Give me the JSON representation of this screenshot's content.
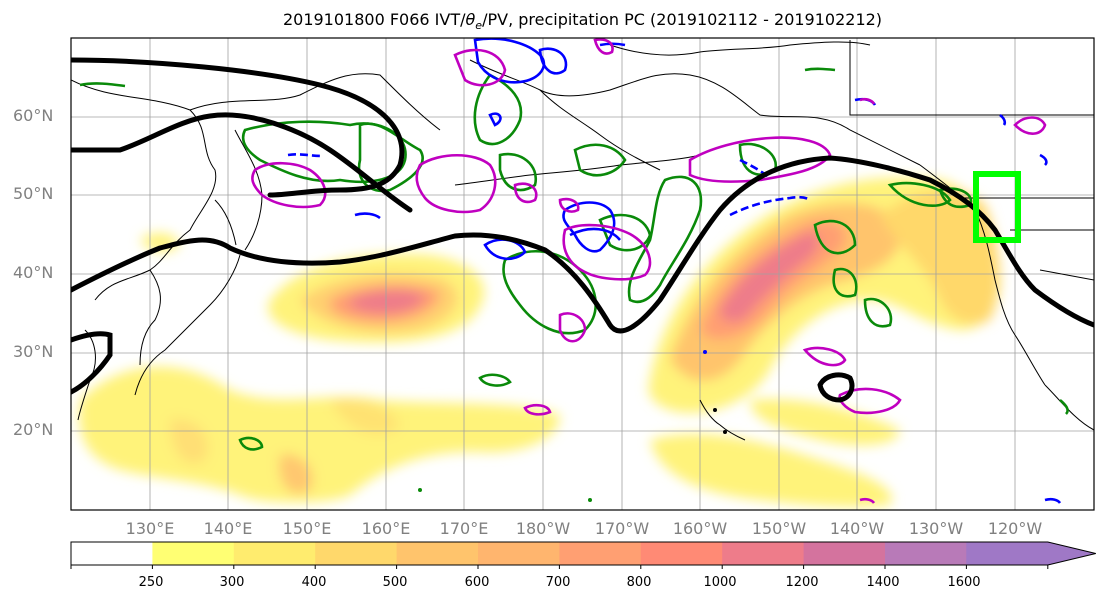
{
  "title_pre": "2019101800 F066 IVT/",
  "title_theta": "θ",
  "title_e": "e",
  "title_post": "/PV, precipitation PC (2019102112 - 2019102212)",
  "lat_labels": [
    "60°N",
    "50°N",
    "40°N",
    "30°N",
    "20°N"
  ],
  "lon_labels": [
    "130°E",
    "140°E",
    "150°E",
    "160°E",
    "170°E",
    "180°W",
    "170°W",
    "160°W",
    "150°W",
    "140°W",
    "130°W",
    "120°W"
  ],
  "colorbar": {
    "levels": [
      "250",
      "300",
      "400",
      "500",
      "600",
      "700",
      "800",
      "1000",
      "1200",
      "1400",
      "1600"
    ],
    "colors": [
      "#ffffff",
      "#ffff73",
      "#ffec6e",
      "#ffd86b",
      "#ffc46c",
      "#ffb56e",
      "#ff9f72",
      "#ff8a75",
      "#ee7c8a",
      "#d4739e",
      "#b87ab8",
      "#9f78c6"
    ]
  },
  "colors": {
    "box": "#00ff00",
    "ivt_contour": "#008000",
    "pv_contour": "#0000ff",
    "theta_contour": "#c000c0",
    "jet_contour": "#000000"
  }
}
